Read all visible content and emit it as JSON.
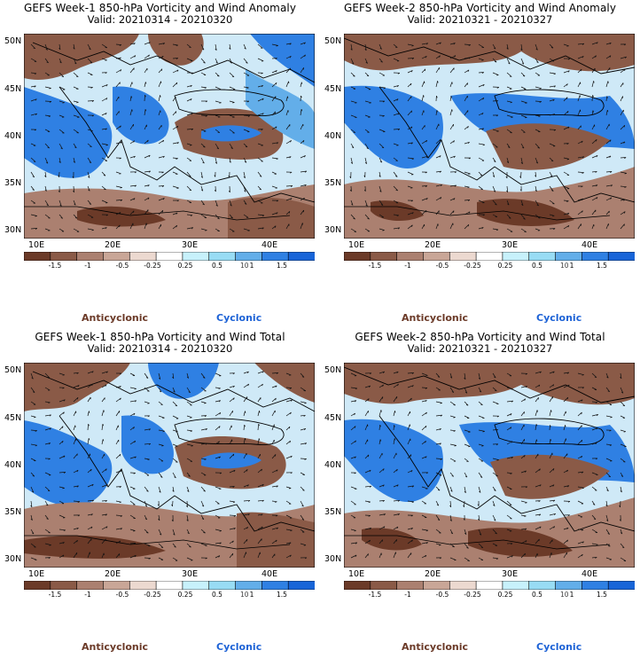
{
  "colors": {
    "cyclonic_text": "#1e63d6",
    "anticyclonic_text": "#6b3a28",
    "colorbar": [
      "#6b3a28",
      "#8a5a47",
      "#ab8070",
      "#c9a697",
      "#ecd9d0",
      "#ffffff",
      "#c7f1fb",
      "#98dcf4",
      "#63aee9",
      "#2f80e3",
      "#1865d8"
    ]
  },
  "panels": [
    {
      "title": "GEFS Week-1 850-hPa Vorticity and Wind Anomaly",
      "valid": "Valid: 20210314 - 20210320"
    },
    {
      "title": "GEFS Week-2 850-hPa Vorticity and Wind Anomaly",
      "valid": "Valid: 20210321 - 20210327"
    },
    {
      "title": "GEFS Week-1 850-hPa Vorticity and Wind Total",
      "valid": "Valid: 20210314 - 20210320"
    },
    {
      "title": "GEFS Week-2 850-hPa Vorticity and Wind Total",
      "valid": "Valid: 20210321 - 20210327"
    }
  ],
  "axes": {
    "lat_labels": [
      "50N",
      "45N",
      "40N",
      "35N",
      "30N"
    ],
    "lon_labels": [
      "10E",
      "20E",
      "30E",
      "40E"
    ]
  },
  "colorbar": {
    "labels": [
      "-1.5",
      "-1",
      "-0.5",
      "-0.25",
      "0.25",
      "0.5",
      "1",
      "1.5"
    ],
    "unit": "10"
  },
  "legend": {
    "anticyclonic": "Anticyclonic",
    "cyclonic": "Cyclonic"
  }
}
